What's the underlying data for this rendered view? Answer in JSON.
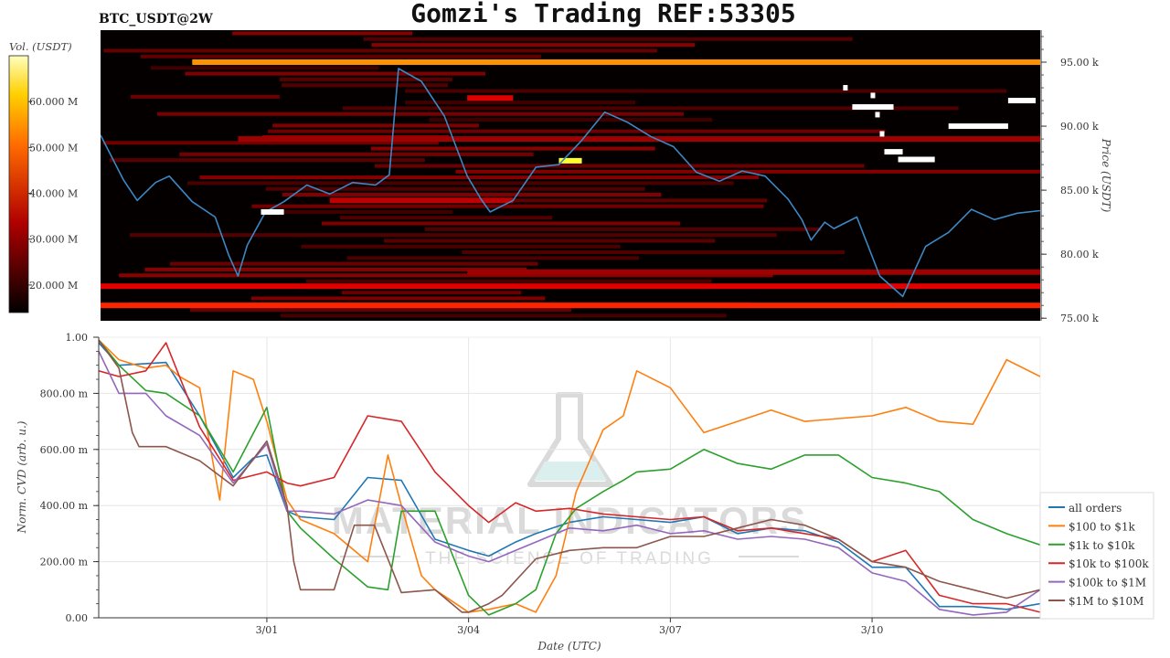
{
  "header": {
    "symbol": "BTC_USDT@2W",
    "title": "Gomzi's Trading REF:53305"
  },
  "watermark": {
    "name": "MATERIAL INDICATORS",
    "tagline": "THE SCIENCE OF TRADING"
  },
  "colors": {
    "background": "#ffffff",
    "heatmap_bg": "#050000",
    "price_line": "#3b88c4",
    "grid": "#e6e6e6"
  },
  "chart_data": [
    {
      "type": "heatmap",
      "title": "BTC_USDT@2W",
      "colorbar": {
        "label": "Vol. (USDT)",
        "ticks": [
          "20.000 M",
          "30.000 M",
          "40.000 M",
          "50.000 M",
          "60.000 M"
        ],
        "tick_values": [
          20,
          30,
          40,
          50,
          60
        ],
        "range": [
          14,
          70
        ],
        "colormap": "hot"
      },
      "y_axis": {
        "label": "Price (USDT)",
        "ticks": [
          "75.00 k",
          "80.00 k",
          "85.00 k",
          "90.00 k",
          "95.00 k"
        ],
        "tick_values": [
          75,
          80,
          85,
          90,
          95
        ],
        "range": [
          74.8,
          97.5
        ]
      },
      "x_axis": {
        "range": [
          -4,
          16.5
        ]
      },
      "price_series": {
        "x": [
          -4,
          -3.5,
          -3.2,
          -2.8,
          -2.5,
          -2,
          -1.5,
          -1.2,
          -1,
          -0.8,
          -0.4,
          0,
          0.5,
          1,
          1.5,
          2,
          2.3,
          2.5,
          3,
          3.5,
          4,
          4.3,
          4.5,
          5,
          5.5,
          6,
          6.5,
          7,
          7.5,
          8,
          8.5,
          9,
          9.5,
          10,
          10.5,
          11,
          11.3,
          11.5,
          11.8,
          12,
          12.5,
          13,
          13.5,
          14,
          14.5,
          15,
          15.5,
          16,
          16.5
        ],
        "y": [
          89.3,
          85.8,
          84.2,
          85.6,
          86.1,
          84.1,
          82.9,
          79.9,
          78.3,
          80.7,
          83.3,
          84.1,
          85.4,
          84.7,
          85.6,
          85.4,
          86.2,
          94.5,
          93.5,
          90.8,
          86.1,
          84.3,
          83.3,
          84.2,
          86.8,
          87.0,
          88.9,
          91.1,
          90.3,
          89.2,
          88.4,
          86.4,
          85.7,
          86.5,
          86.1,
          84.3,
          82.7,
          81.1,
          82.5,
          82.0,
          82.9,
          78.3,
          76.7,
          80.6,
          81.7,
          83.5,
          82.7,
          83.2,
          83.4
        ]
      },
      "bright_levels": [
        {
          "price": 95.0,
          "x": [
            -2,
            16.5
          ],
          "intensity": 0.6
        },
        {
          "price": 76.0,
          "x": [
            -4,
            16.5
          ],
          "intensity": 0.45
        },
        {
          "price": 77.5,
          "x": [
            -4,
            16.5
          ],
          "intensity": 0.35
        },
        {
          "price": 89.0,
          "x": [
            -1,
            16.5
          ],
          "intensity": 0.25
        },
        {
          "price": 78.6,
          "x": [
            4,
            16.5
          ],
          "intensity": 0.25
        },
        {
          "price": 84.2,
          "x": [
            1,
            5
          ],
          "intensity": 0.3
        },
        {
          "price": 92.2,
          "x": [
            4,
            5
          ],
          "intensity": 0.35
        },
        {
          "price": 87.3,
          "x": [
            6,
            6.5
          ],
          "intensity": 0.8
        }
      ],
      "peak_orders": [
        {
          "x": [
            -0.5,
            0
          ],
          "price": 83.3
        },
        {
          "x": [
            12.4,
            13.3
          ],
          "price": 91.5
        },
        {
          "x": [
            12.2,
            12.3
          ],
          "price": 93.0
        },
        {
          "x": [
            12.8,
            12.9
          ],
          "price": 92.4
        },
        {
          "x": [
            12.9,
            13.0
          ],
          "price": 90.9
        },
        {
          "x": [
            13.0,
            13.1
          ],
          "price": 89.4
        },
        {
          "x": [
            13.1,
            13.5
          ],
          "price": 88.0
        },
        {
          "x": [
            13.4,
            14.2
          ],
          "price": 87.4
        },
        {
          "x": [
            14.5,
            15.8
          ],
          "price": 90.0
        },
        {
          "x": [
            15.8,
            16.4
          ],
          "price": 92.0
        }
      ]
    },
    {
      "type": "line",
      "x_axis": {
        "label": "Date (UTC)",
        "ticks": [
          "3/01",
          "3/04",
          "3/07",
          "3/10"
        ],
        "tick_values": [
          0,
          3,
          6,
          9
        ],
        "range": [
          -2.5,
          11.5
        ]
      },
      "y_axis": {
        "label": "Norm. CVD (arb. u.)",
        "ticks": [
          "0.00",
          "200.00 m",
          "400.00 m",
          "600.00 m",
          "800.00 m",
          "1.00"
        ],
        "tick_values": [
          0,
          0.2,
          0.4,
          0.6,
          0.8,
          1.0
        ],
        "range": [
          0,
          1
        ]
      },
      "grid": true,
      "legend_position": "bottom-right",
      "series": [
        {
          "name": "all orders",
          "color": "#1f77b4",
          "x": [
            -2.5,
            -2.2,
            -1.5,
            -1,
            -0.5,
            -0.2,
            0,
            0.3,
            0.5,
            1,
            1.5,
            2,
            2.5,
            3,
            3.3,
            3.7,
            4,
            4.5,
            5,
            5.5,
            6,
            6.5,
            7,
            7.5,
            8,
            8.5,
            9,
            9.5,
            10,
            10.5,
            11,
            11.5
          ],
          "y": [
            0.98,
            0.9,
            0.91,
            0.72,
            0.5,
            0.57,
            0.58,
            0.38,
            0.36,
            0.35,
            0.5,
            0.49,
            0.28,
            0.24,
            0.22,
            0.27,
            0.3,
            0.34,
            0.36,
            0.35,
            0.34,
            0.36,
            0.3,
            0.32,
            0.31,
            0.27,
            0.18,
            0.18,
            0.04,
            0.04,
            0.03,
            0.05
          ]
        },
        {
          "name": "$100 to $1k",
          "color": "#ff7f0e",
          "x": [
            -2.5,
            -2.2,
            -1.8,
            -1.5,
            -1.3,
            -1,
            -0.7,
            -0.5,
            -0.2,
            0,
            0.3,
            0.5,
            1,
            1.5,
            1.8,
            2,
            2.3,
            2.5,
            3,
            3.3,
            3.7,
            4,
            4.3,
            4.6,
            5,
            5.3,
            5.5,
            6,
            6.5,
            7,
            7.5,
            8,
            8.5,
            9,
            9.5,
            10,
            10.5,
            11,
            11.5
          ],
          "y": [
            0.99,
            0.92,
            0.89,
            0.9,
            0.86,
            0.82,
            0.42,
            0.88,
            0.85,
            0.7,
            0.42,
            0.35,
            0.3,
            0.2,
            0.58,
            0.4,
            0.15,
            0.1,
            0.02,
            0.03,
            0.05,
            0.02,
            0.15,
            0.45,
            0.67,
            0.72,
            0.88,
            0.82,
            0.66,
            0.7,
            0.74,
            0.7,
            0.71,
            0.72,
            0.75,
            0.7,
            0.69,
            0.92,
            0.86
          ]
        },
        {
          "name": "$1k to $10k",
          "color": "#2ca02c",
          "x": [
            -2.5,
            -2.2,
            -1.8,
            -1.5,
            -1,
            -0.5,
            0,
            0.3,
            0.5,
            1,
            1.5,
            1.8,
            2,
            2.5,
            3,
            3.3,
            3.7,
            4,
            4.3,
            4.6,
            5,
            5.3,
            5.5,
            6,
            6.5,
            7,
            7.5,
            8,
            8.5,
            9,
            9.5,
            10,
            10.5,
            11,
            11.5
          ],
          "y": [
            0.99,
            0.9,
            0.81,
            0.8,
            0.72,
            0.52,
            0.75,
            0.38,
            0.32,
            0.21,
            0.11,
            0.1,
            0.38,
            0.38,
            0.08,
            0.01,
            0.05,
            0.1,
            0.3,
            0.39,
            0.45,
            0.49,
            0.52,
            0.53,
            0.6,
            0.55,
            0.53,
            0.58,
            0.58,
            0.5,
            0.48,
            0.45,
            0.35,
            0.3,
            0.26
          ]
        },
        {
          "name": "$10k to $100k",
          "color": "#d62728",
          "x": [
            -2.5,
            -2.2,
            -1.8,
            -1.5,
            -1,
            -0.5,
            0,
            0.3,
            0.5,
            1,
            1.5,
            2,
            2.5,
            3,
            3.3,
            3.7,
            4,
            4.5,
            5,
            5.5,
            6,
            6.5,
            7,
            7.5,
            8,
            8.5,
            9,
            9.5,
            10,
            10.5,
            11,
            11.5
          ],
          "y": [
            0.88,
            0.86,
            0.88,
            0.98,
            0.68,
            0.49,
            0.52,
            0.48,
            0.47,
            0.5,
            0.72,
            0.7,
            0.52,
            0.4,
            0.34,
            0.41,
            0.38,
            0.39,
            0.37,
            0.36,
            0.35,
            0.36,
            0.31,
            0.32,
            0.3,
            0.28,
            0.2,
            0.24,
            0.08,
            0.05,
            0.05,
            0.02
          ]
        },
        {
          "name": "$100k to $1M",
          "color": "#9467bd",
          "x": [
            -2.5,
            -2.2,
            -1.8,
            -1.5,
            -1,
            -0.5,
            0,
            0.3,
            0.5,
            1,
            1.5,
            2,
            2.5,
            3,
            3.3,
            3.7,
            4,
            4.5,
            5,
            5.5,
            6,
            6.5,
            7,
            7.5,
            8,
            8.5,
            9,
            9.5,
            10,
            10.5,
            11,
            11.5
          ],
          "y": [
            0.95,
            0.8,
            0.8,
            0.72,
            0.65,
            0.48,
            0.62,
            0.38,
            0.38,
            0.37,
            0.42,
            0.4,
            0.27,
            0.22,
            0.2,
            0.24,
            0.27,
            0.32,
            0.31,
            0.33,
            0.3,
            0.31,
            0.28,
            0.29,
            0.28,
            0.25,
            0.16,
            0.13,
            0.03,
            0.01,
            0.02,
            0.1
          ]
        },
        {
          "name": "$1M to $10M",
          "color": "#8c564b",
          "x": [
            -2.5,
            -2.2,
            -2,
            -1.9,
            -1.5,
            -1,
            -0.5,
            0,
            0.3,
            0.4,
            0.5,
            1,
            1.3,
            1.6,
            2,
            2.5,
            2.9,
            3,
            3.3,
            3.5,
            4,
            4.5,
            5,
            5.5,
            6,
            6.5,
            7,
            7.5,
            8,
            8.5,
            9,
            9.5,
            10,
            10.5,
            11,
            11.5
          ],
          "y": [
            0.99,
            0.89,
            0.66,
            0.61,
            0.61,
            0.56,
            0.47,
            0.63,
            0.4,
            0.2,
            0.1,
            0.1,
            0.33,
            0.33,
            0.09,
            0.1,
            0.02,
            0.02,
            0.05,
            0.08,
            0.21,
            0.24,
            0.25,
            0.25,
            0.29,
            0.29,
            0.32,
            0.35,
            0.33,
            0.28,
            0.2,
            0.18,
            0.13,
            0.1,
            0.07,
            0.1
          ]
        }
      ]
    }
  ]
}
